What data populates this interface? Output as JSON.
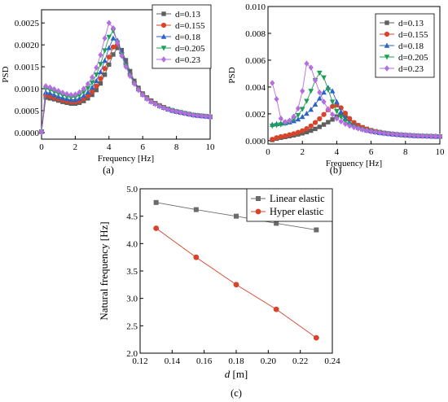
{
  "chart_data": [
    {
      "panel_label": "(a)",
      "type": "line",
      "xlabel": "Frequency [Hz]",
      "ylabel": "PSD",
      "xlim": [
        0,
        10
      ],
      "ylim": [
        -0.00015,
        0.0028
      ],
      "xticks": [
        0,
        2,
        4,
        6,
        8,
        10
      ],
      "xtick_labels": [
        "0",
        "2",
        "4",
        "6",
        "8",
        "10"
      ],
      "yticks": [
        0,
        0.0005,
        0.001,
        0.0015,
        0.002,
        0.0025
      ],
      "ytick_labels": [
        "0.0000",
        "0.0005",
        "0.0010",
        "0.0015",
        "0.0020",
        "0.0025"
      ],
      "legend_position": "top-right",
      "x": [
        0,
        0.25,
        0.5,
        0.75,
        1,
        1.25,
        1.5,
        1.75,
        2,
        2.25,
        2.5,
        2.75,
        3,
        3.25,
        3.5,
        3.75,
        4,
        4.25,
        4.5,
        4.75,
        5,
        5.25,
        5.5,
        5.75,
        6,
        6.25,
        6.5,
        6.75,
        7,
        7.25,
        7.5,
        7.75,
        8,
        8.25,
        8.5,
        8.75,
        9,
        9.25,
        9.5,
        9.75,
        10
      ],
      "series": [
        {
          "name": "d=0.13",
          "color": "#5f5f5f",
          "marker": "square",
          "values": [
            2e-05,
            0.0008,
            0.00078,
            0.00076,
            0.00073,
            0.0007,
            0.00068,
            0.00066,
            0.00066,
            0.00068,
            0.00072,
            0.00078,
            0.00086,
            0.00097,
            0.00112,
            0.00132,
            0.00155,
            0.00178,
            0.00193,
            0.00188,
            0.00165,
            0.0014,
            0.00118,
            0.00102,
            0.00089,
            0.0008,
            0.00073,
            0.00067,
            0.00062,
            0.00058,
            0.00054,
            0.00051,
            0.00048,
            0.00046,
            0.00044,
            0.00042,
            0.0004,
            0.00039,
            0.00038,
            0.00037,
            0.00036
          ]
        },
        {
          "name": "d=0.155",
          "color": "#d8432a",
          "marker": "circle",
          "values": [
            2e-05,
            0.00085,
            0.00083,
            0.0008,
            0.00077,
            0.00074,
            0.00072,
            0.0007,
            0.0007,
            0.00072,
            0.00077,
            0.00084,
            0.00093,
            0.00106,
            0.00123,
            0.00146,
            0.00172,
            0.00195,
            0.002,
            0.00182,
            0.00158,
            0.00134,
            0.00114,
            0.00099,
            0.00087,
            0.00078,
            0.00071,
            0.00066,
            0.00061,
            0.00057,
            0.00053,
            0.0005,
            0.00048,
            0.00046,
            0.00044,
            0.00042,
            0.0004,
            0.00039,
            0.00038,
            0.00037,
            0.00036
          ]
        },
        {
          "name": "d=0.18",
          "color": "#2b63c6",
          "marker": "triangle-up",
          "values": [
            2e-05,
            0.00092,
            0.0009,
            0.00086,
            0.00082,
            0.00079,
            0.00077,
            0.00075,
            0.00075,
            0.00078,
            0.00084,
            0.00092,
            0.00103,
            0.00118,
            0.00138,
            0.00164,
            0.00193,
            0.00215,
            0.0021,
            0.00185,
            0.00158,
            0.00134,
            0.00114,
            0.00099,
            0.00087,
            0.00078,
            0.00071,
            0.00066,
            0.00061,
            0.00057,
            0.00053,
            0.0005,
            0.00048,
            0.00046,
            0.00044,
            0.00042,
            0.0004,
            0.00039,
            0.00038,
            0.00037,
            0.00036
          ]
        },
        {
          "name": "d=0.205",
          "color": "#1f9f55",
          "marker": "triangle-down",
          "values": [
            2e-05,
            0.001,
            0.00097,
            0.00093,
            0.00089,
            0.00085,
            0.00082,
            0.0008,
            0.00081,
            0.00085,
            0.00092,
            0.00101,
            0.00114,
            0.00132,
            0.00156,
            0.00187,
            0.00218,
            0.00232,
            0.00205,
            0.00178,
            0.00153,
            0.00131,
            0.00112,
            0.00097,
            0.00086,
            0.00077,
            0.0007,
            0.00065,
            0.0006,
            0.00056,
            0.00053,
            0.0005,
            0.00048,
            0.00046,
            0.00044,
            0.00042,
            0.0004,
            0.00039,
            0.00038,
            0.00037,
            0.00036
          ]
        },
        {
          "name": "d=0.23",
          "color": "#b56ee0",
          "marker": "diamond",
          "values": [
            2e-05,
            0.00106,
            0.00103,
            0.00099,
            0.00095,
            0.00091,
            0.00088,
            0.00086,
            0.00087,
            0.00092,
            0.001,
            0.00111,
            0.00126,
            0.00148,
            0.00177,
            0.00215,
            0.0025,
            0.00238,
            0.00205,
            0.00175,
            0.0015,
            0.00129,
            0.00111,
            0.00097,
            0.00086,
            0.00077,
            0.0007,
            0.00065,
            0.0006,
            0.00056,
            0.00053,
            0.0005,
            0.00048,
            0.00046,
            0.00044,
            0.00042,
            0.0004,
            0.00039,
            0.00038,
            0.00037,
            0.00036
          ]
        }
      ]
    },
    {
      "panel_label": "(b)",
      "type": "line",
      "xlabel": "Frequency [Hz]",
      "ylabel": "PSD",
      "xlim": [
        0,
        10
      ],
      "ylim": [
        -0.00025,
        0.01
      ],
      "xticks": [
        0,
        2,
        4,
        6,
        8,
        10
      ],
      "xtick_labels": [
        "0",
        "2",
        "4",
        "6",
        "8",
        "10"
      ],
      "yticks": [
        0,
        0.002,
        0.004,
        0.006,
        0.008,
        0.01
      ],
      "ytick_labels": [
        "0.000",
        "0.002",
        "0.004",
        "0.006",
        "0.008",
        "0.010"
      ],
      "legend_position": "top-right",
      "x": [
        0.25,
        0.5,
        0.75,
        1,
        1.25,
        1.5,
        1.75,
        2,
        2.25,
        2.5,
        2.75,
        3,
        3.25,
        3.5,
        3.75,
        4,
        4.25,
        4.5,
        4.75,
        5,
        5.25,
        5.5,
        5.75,
        6,
        6.25,
        6.5,
        6.75,
        7,
        7.25,
        7.5,
        7.75,
        8,
        8.25,
        8.5,
        8.75,
        9,
        9.25,
        9.5,
        9.75,
        10
      ],
      "series": [
        {
          "name": "d=0.13",
          "color": "#5f5f5f",
          "marker": "square",
          "values": [
            5e-05,
            0.00015,
            0.00022,
            0.00028,
            0.00034,
            0.0004,
            0.00047,
            0.00055,
            0.00064,
            0.00075,
            0.00088,
            0.00103,
            0.0012,
            0.00138,
            0.00158,
            0.0018,
            0.00195,
            0.00185,
            0.0016,
            0.00135,
            0.00115,
            0.001,
            0.00088,
            0.00078,
            0.0007,
            0.00064,
            0.00058,
            0.00054,
            0.0005,
            0.00047,
            0.00044,
            0.00042,
            0.0004,
            0.00038,
            0.00036,
            0.00035,
            0.00034,
            0.00033,
            0.00032,
            0.00031
          ]
        },
        {
          "name": "d=0.155",
          "color": "#d8432a",
          "marker": "circle",
          "values": [
            0.0001,
            0.00022,
            0.0003,
            0.00036,
            0.00044,
            0.00052,
            0.00062,
            0.00074,
            0.0009,
            0.0011,
            0.00135,
            0.00163,
            0.00195,
            0.0023,
            0.00255,
            0.00265,
            0.00245,
            0.00205,
            0.00165,
            0.00135,
            0.00113,
            0.00097,
            0.00085,
            0.00075,
            0.00067,
            0.00061,
            0.00056,
            0.00052,
            0.00048,
            0.00045,
            0.00042,
            0.0004,
            0.00038,
            0.00036,
            0.00035,
            0.00034,
            0.00033,
            0.00032,
            0.00031,
            0.0003
          ]
        },
        {
          "name": "d=0.18",
          "color": "#2b63c6",
          "marker": "triangle-up",
          "values": [
            0.0012,
            0.00125,
            0.00128,
            0.00132,
            0.00138,
            0.00147,
            0.0016,
            0.00178,
            0.00202,
            0.00232,
            0.0027,
            0.00315,
            0.0036,
            0.00395,
            0.0037,
            0.0029,
            0.00215,
            0.00165,
            0.00133,
            0.00112,
            0.00097,
            0.00086,
            0.00077,
            0.0007,
            0.00064,
            0.00059,
            0.00055,
            0.00051,
            0.00048,
            0.00045,
            0.00043,
            0.00041,
            0.00039,
            0.00037,
            0.00036,
            0.00035,
            0.00034,
            0.00033,
            0.00032,
            0.00031
          ]
        },
        {
          "name": "d=0.205",
          "color": "#1f9f55",
          "marker": "triangle-down",
          "values": [
            0.0011,
            0.00115,
            0.0012,
            0.00128,
            0.0014,
            0.0016,
            0.0019,
            0.00235,
            0.00295,
            0.0037,
            0.0045,
            0.00505,
            0.0047,
            0.0038,
            0.0029,
            0.0022,
            0.00175,
            0.00143,
            0.0012,
            0.00104,
            0.00092,
            0.00082,
            0.00074,
            0.00067,
            0.00062,
            0.00057,
            0.00053,
            0.0005,
            0.00047,
            0.00044,
            0.00042,
            0.0004,
            0.00038,
            0.00036,
            0.00035,
            0.00034,
            0.00033,
            0.00032,
            0.00031,
            0.0003
          ]
        },
        {
          "name": "d=0.23",
          "color": "#b56ee0",
          "marker": "diamond",
          "values": [
            0.0043,
            0.0031,
            0.00165,
            0.0014,
            0.0015,
            0.0018,
            0.0024,
            0.0037,
            0.00575,
            0.00545,
            0.0045,
            0.0036,
            0.0029,
            0.00235,
            0.00195,
            0.00165,
            0.00143,
            0.00125,
            0.00111,
            0.001,
            0.00091,
            0.00083,
            0.00076,
            0.0007,
            0.00065,
            0.0006,
            0.00056,
            0.00053,
            0.0005,
            0.00047,
            0.00045,
            0.00043,
            0.00041,
            0.00039,
            0.00037,
            0.00036,
            0.00035,
            0.00034,
            0.00033,
            0.00032
          ]
        }
      ]
    },
    {
      "panel_label": "(c)",
      "type": "line",
      "xlabel_italic": "d",
      "xlabel_unit": " [m]",
      "ylabel": "Natural frequency [Hz]",
      "xlim": [
        0.12,
        0.24
      ],
      "ylim": [
        2.0,
        5.0
      ],
      "xticks": [
        0.12,
        0.14,
        0.16,
        0.18,
        0.2,
        0.22,
        0.24
      ],
      "xtick_labels": [
        "0.12",
        "0.14",
        "0.16",
        "0.18",
        "0.20",
        "0.22",
        "0.24"
      ],
      "yticks": [
        2.0,
        2.5,
        3.0,
        3.5,
        4.0,
        4.5,
        5.0
      ],
      "ytick_labels": [
        "2.0",
        "2.5",
        "3.0",
        "3.5",
        "4.0",
        "4.5",
        "5.0"
      ],
      "legend_position": "top-right",
      "x": [
        0.13,
        0.155,
        0.18,
        0.205,
        0.23
      ],
      "series": [
        {
          "name": "Linear elastic",
          "color": "#6b6b6b",
          "marker": "square",
          "values": [
            4.75,
            4.62,
            4.5,
            4.37,
            4.25
          ]
        },
        {
          "name": "Hyper elastic",
          "color": "#d8432a",
          "marker": "circle",
          "values": [
            4.28,
            3.75,
            3.25,
            2.8,
            2.28
          ]
        }
      ]
    }
  ]
}
